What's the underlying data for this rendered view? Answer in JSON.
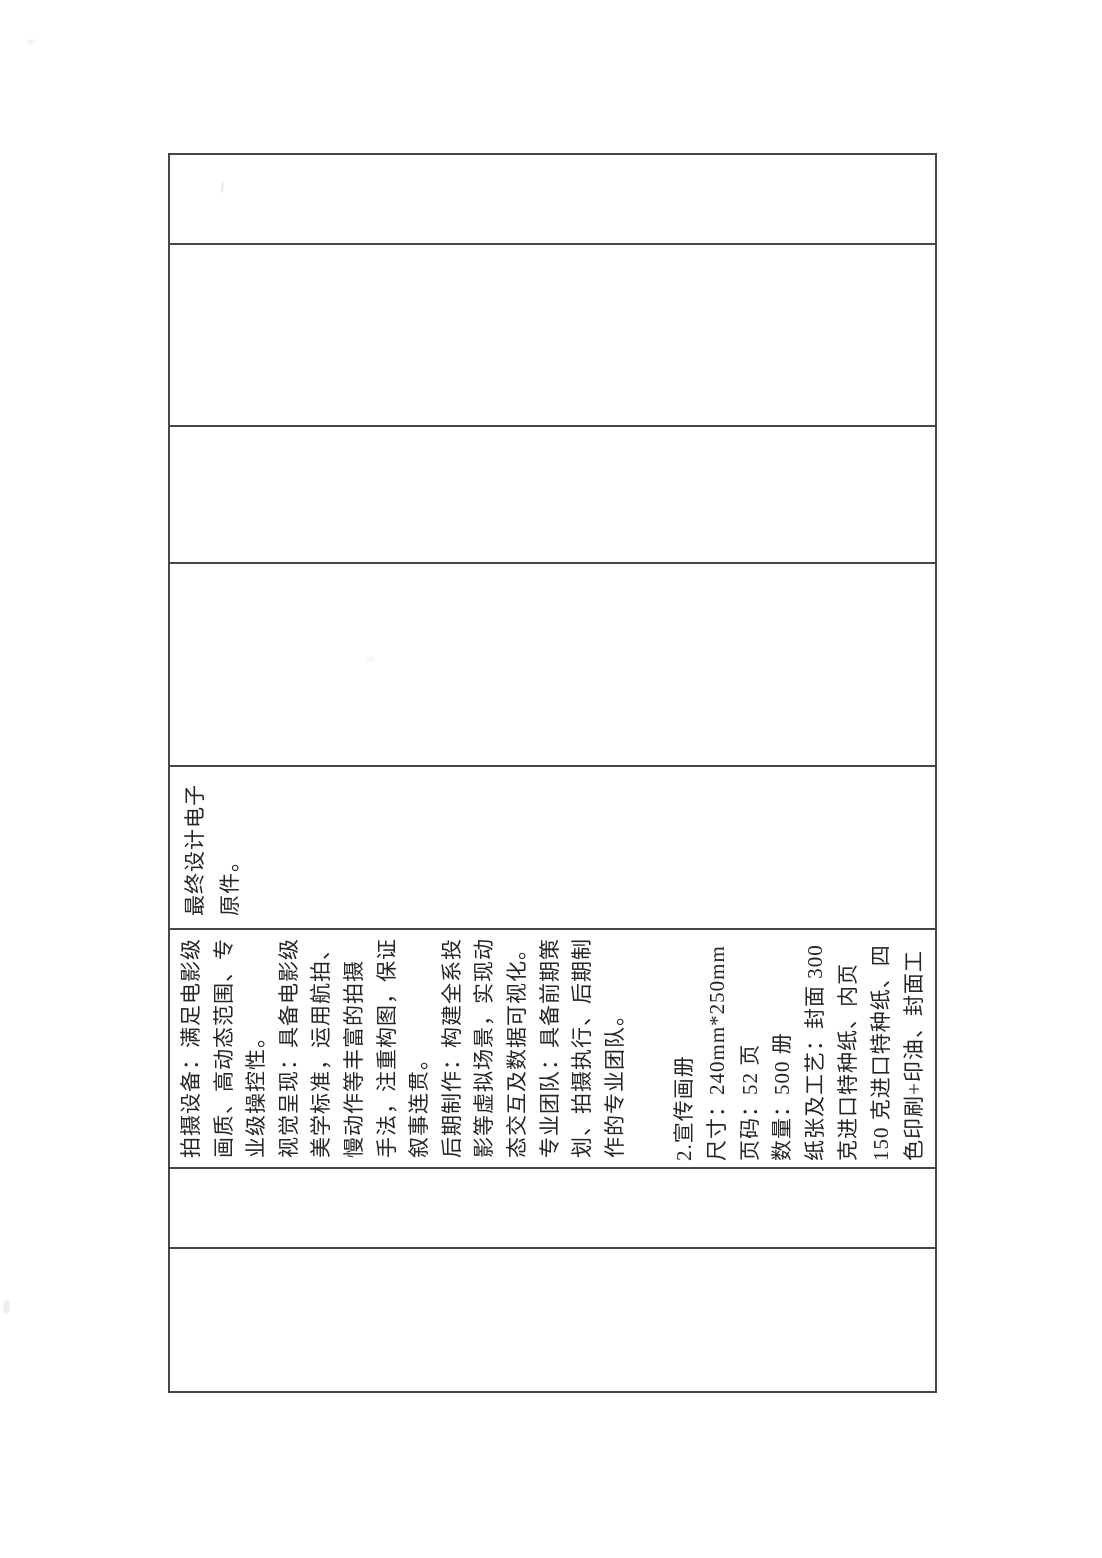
{
  "colors": {
    "paper": "#ffffff",
    "line": "#474747",
    "text": "#262626"
  },
  "table": {
    "cells": {
      "final_design": {
        "lines": [
          "最终设计电子",
          "原件。"
        ]
      },
      "production": {
        "lines": [
          "拍摄设备：满足电影级",
          "画质、高动态范围、专",
          "业级操控性。",
          "视觉呈现：具备电影级",
          "美学标准，运用航拍、",
          "慢动作等丰富的拍摄",
          "手法，注重构图，保证",
          "叙事连贯。",
          "后期制作：构建全系投",
          "影等虚拟场景，实现动",
          "态交互及数据可视化。",
          "专业团队：具备前期策",
          "划、拍摄执行、后期制",
          "作的专业团队。"
        ]
      },
      "brochure": {
        "lines": [
          "2.宣传画册",
          "尺寸：240mm*250mm",
          "页码：52 页",
          "数量：500 册",
          "纸张及工艺：封面 300",
          "克进口特种纸、内页",
          "150 克进口特种纸、四",
          "色印刷+印油、封面工"
        ]
      }
    }
  }
}
